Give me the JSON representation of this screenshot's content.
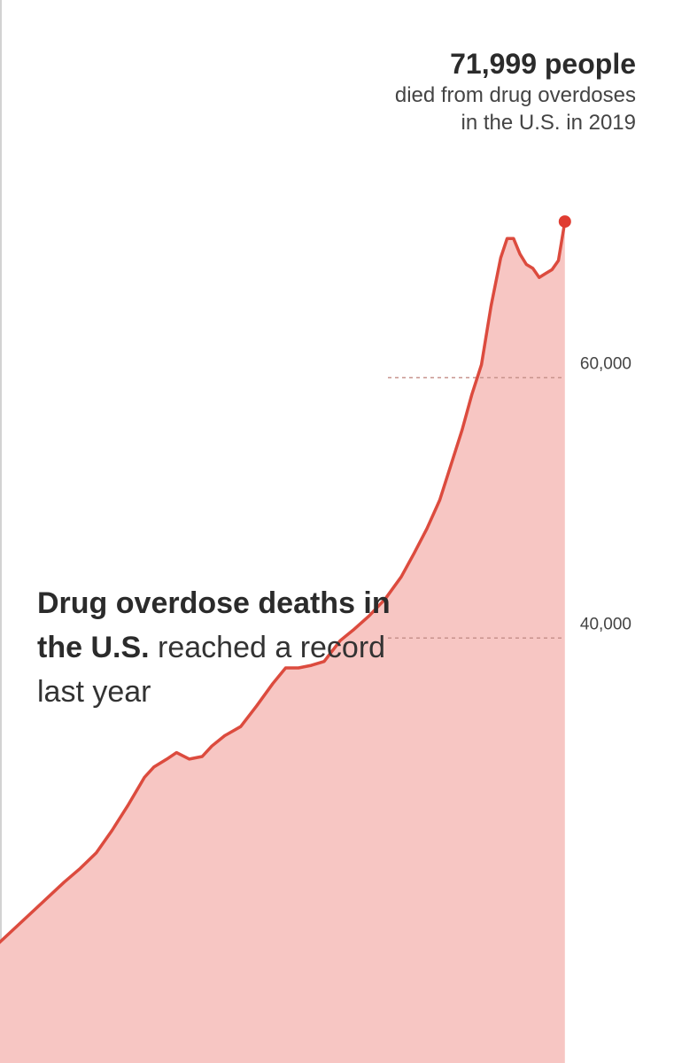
{
  "chart_data": {
    "type": "area",
    "xlim": [
      1999.0,
      2020.0
    ],
    "ylim": [
      0,
      80000
    ],
    "ticks": [
      {
        "value": 40000,
        "label": "40,000"
      },
      {
        "value": 60000,
        "label": "60,000"
      }
    ],
    "series": [
      {
        "points": [
          [
            2000.5,
            20100
          ],
          [
            2001.0,
            21250
          ],
          [
            2001.5,
            22300
          ],
          [
            2002.0,
            23500
          ],
          [
            2002.5,
            25250
          ],
          [
            2003.0,
            27200
          ],
          [
            2003.5,
            29300
          ],
          [
            2003.8,
            30100
          ],
          [
            2004.2,
            30700
          ],
          [
            2004.5,
            31200
          ],
          [
            2004.9,
            30700
          ],
          [
            2005.3,
            30900
          ],
          [
            2005.6,
            31700
          ],
          [
            2006.0,
            32500
          ],
          [
            2006.5,
            33200
          ],
          [
            2007.0,
            34800
          ],
          [
            2007.5,
            36500
          ],
          [
            2007.9,
            37700
          ],
          [
            2008.3,
            37700
          ],
          [
            2008.7,
            37900
          ],
          [
            2009.1,
            38200
          ],
          [
            2009.6,
            39800
          ],
          [
            2010.0,
            40600
          ],
          [
            2010.5,
            41700
          ],
          [
            2011.0,
            43000
          ],
          [
            2011.5,
            44700
          ],
          [
            2011.9,
            46500
          ],
          [
            2012.3,
            48400
          ],
          [
            2012.7,
            50600
          ],
          [
            2013.0,
            52900
          ],
          [
            2013.4,
            56000
          ],
          [
            2013.7,
            58700
          ],
          [
            2014.0,
            61000
          ],
          [
            2014.3,
            65500
          ],
          [
            2014.6,
            69200
          ],
          [
            2014.8,
            70700
          ],
          [
            2015.0,
            70700
          ],
          [
            2015.2,
            69500
          ],
          [
            2015.4,
            68700
          ],
          [
            2015.6,
            68400
          ],
          [
            2015.8,
            67700
          ],
          [
            2016.0,
            68000
          ],
          [
            2016.2,
            68300
          ],
          [
            2016.4,
            69000
          ],
          [
            2016.6,
            71999
          ]
        ]
      }
    ]
  },
  "callout": {
    "value": "71,999 people",
    "line1": "died from drug overdoses",
    "line2": "in the U.S. in 2019"
  },
  "headline": {
    "bold": "Drug overdose deaths in the U.S.",
    "regular": " reached a record last year"
  },
  "colors": {
    "line": "#dc4b3e",
    "fill": "#f7c6c3",
    "dot": "#e03c31",
    "gridline": "#c7938d"
  }
}
